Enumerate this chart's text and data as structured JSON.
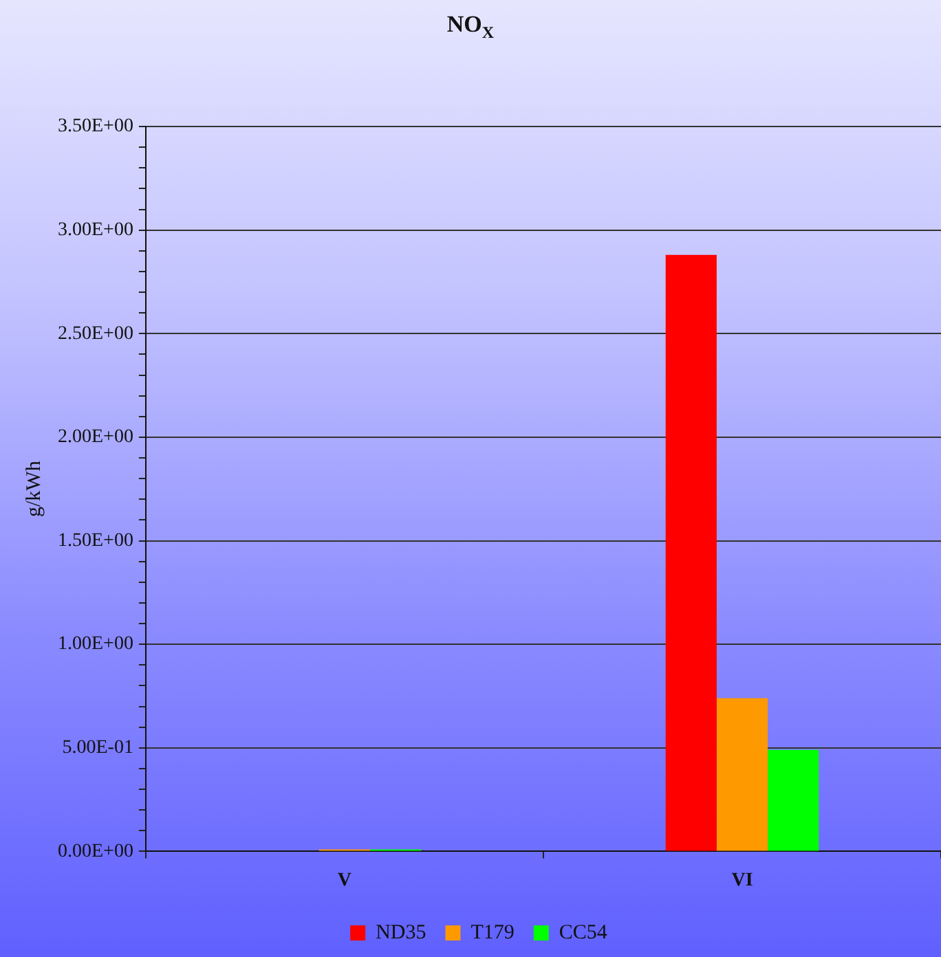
{
  "chart_data": {
    "type": "bar",
    "title": "NO$_{X}$",
    "ylabel": "g/kWh",
    "categories": [
      "V",
      "VI"
    ],
    "series": [
      {
        "name": "ND35",
        "color": "#ff0000",
        "values": [
          0,
          2.88
        ]
      },
      {
        "name": "T179",
        "color": "#ff9900",
        "values": [
          0.01,
          0.74
        ]
      },
      {
        "name": "CC54",
        "color": "#00ff00",
        "values": [
          0.01,
          0.49
        ]
      }
    ],
    "ylim": [
      0,
      3.5
    ],
    "yticks": [
      {
        "value": 0,
        "label": "0.00E+00"
      },
      {
        "value": 0.1,
        "label": null
      },
      {
        "value": 0.2,
        "label": null
      },
      {
        "value": 0.3,
        "label": null
      },
      {
        "value": 0.4,
        "label": null
      },
      {
        "value": 0.5,
        "label": "5.00E-01"
      },
      {
        "value": 0.6,
        "label": null
      },
      {
        "value": 0.7,
        "label": null
      },
      {
        "value": 0.8,
        "label": null
      },
      {
        "value": 0.9,
        "label": null
      },
      {
        "value": 1,
        "label": "1.00E+00"
      },
      {
        "value": 1.1,
        "label": null
      },
      {
        "value": 1.2,
        "label": null
      },
      {
        "value": 1.3,
        "label": null
      },
      {
        "value": 1.4,
        "label": null
      },
      {
        "value": 1.5,
        "label": "1.50E+00"
      },
      {
        "value": 1.6,
        "label": null
      },
      {
        "value": 1.7,
        "label": null
      },
      {
        "value": 1.8,
        "label": null
      },
      {
        "value": 1.9,
        "label": null
      },
      {
        "value": 2,
        "label": "2.00E+00"
      },
      {
        "value": 2.1,
        "label": null
      },
      {
        "value": 2.2,
        "label": null
      },
      {
        "value": 2.3,
        "label": null
      },
      {
        "value": 2.4,
        "label": null
      },
      {
        "value": 2.5,
        "label": "2.50E+00"
      },
      {
        "value": 2.6,
        "label": null
      },
      {
        "value": 2.7,
        "label": null
      },
      {
        "value": 2.8,
        "label": null
      },
      {
        "value": 2.9,
        "label": null
      },
      {
        "value": 3,
        "label": "3.00E+00"
      },
      {
        "value": 3.1,
        "label": null
      },
      {
        "value": 3.2,
        "label": null
      },
      {
        "value": 3.3,
        "label": null
      },
      {
        "value": 3.4,
        "label": null
      },
      {
        "value": 3.5,
        "label": "3.50E+00"
      }
    ],
    "grid": "y",
    "legend": "bottom"
  }
}
